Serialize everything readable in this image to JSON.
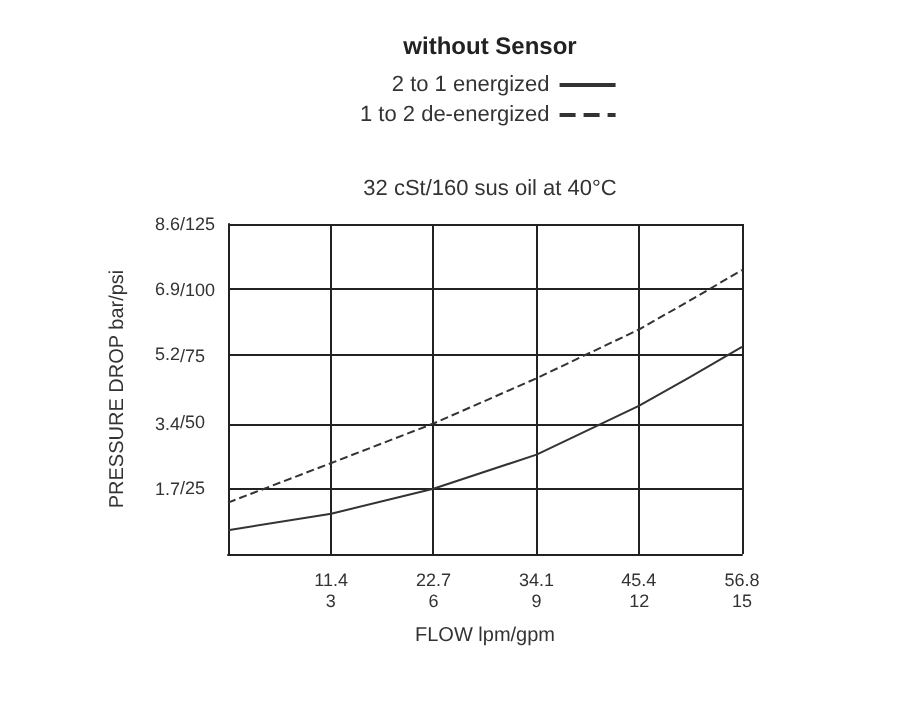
{
  "chart_data": {
    "type": "line",
    "title": "without Sensor",
    "subtitle": "32 cSt/160 sus oil at 40°C",
    "xlabel": "FLOW lpm/gpm",
    "ylabel": "PRESSURE DROP bar/psi",
    "xlim": [
      0,
      56.8
    ],
    "xticks": [
      11.4,
      22.7,
      34.1,
      45.4,
      56.8
    ],
    "x2lim": [
      0,
      15
    ],
    "x2ticks": [
      3,
      6,
      9,
      12,
      15
    ],
    "ylim": [
      0,
      8.6
    ],
    "yticks": [
      1.7,
      3.4,
      5.2,
      6.9,
      8.6
    ],
    "y2lim": [
      0,
      125
    ],
    "y2ticks": [
      {
        "value": 25,
        "label": "/25"
      },
      {
        "value": 50,
        "label": "/50"
      },
      {
        "value": 75,
        "label": "/75"
      },
      {
        "value": 100,
        "label": "/100"
      },
      {
        "value": 125,
        "label": "/125"
      }
    ],
    "x": [
      0,
      11.4,
      22.7,
      34.1,
      45.4,
      51,
      56.8
    ],
    "series": [
      {
        "name": "2 to 1 energized",
        "color": "#333333",
        "line_style": "solid",
        "values": [
          0.62,
          1.05,
          1.7,
          2.59,
          3.86,
          4.6,
          5.4
        ]
      },
      {
        "name": "1 to 2 de-energized",
        "color": "#333333",
        "line_style": "dashed",
        "values": [
          1.34,
          2.37,
          3.4,
          4.58,
          5.85,
          6.6,
          7.4
        ]
      }
    ],
    "grid": true,
    "legend": "top",
    "marker": "none"
  }
}
